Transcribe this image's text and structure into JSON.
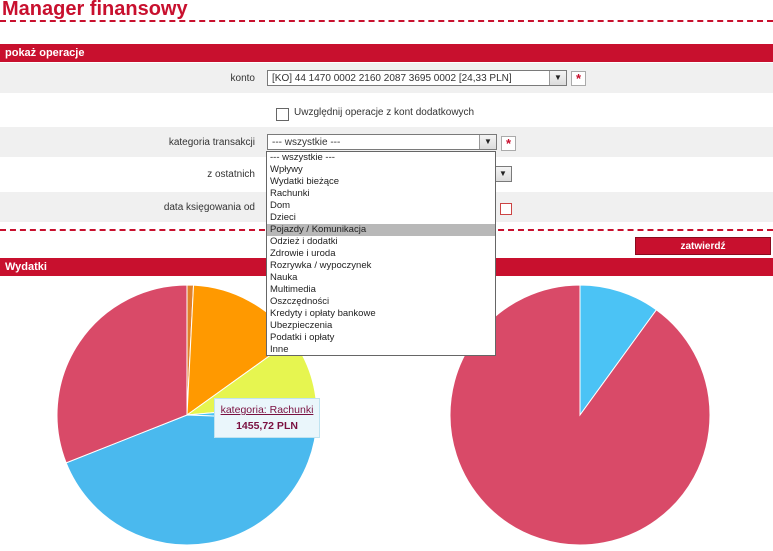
{
  "page": {
    "title": "Manager finansowy"
  },
  "filters": {
    "header": "pokaż operacje",
    "account_label": "konto",
    "account_value": "[KO] 44 1470 0002 2160 2087 3695 0002 [24,33 PLN]",
    "include_extra_label": "Uwzględnij operacje z kont dodatkowych",
    "category_label": "kategoria transakcji",
    "category_value": "--- wszystkie ---",
    "period_label": "z ostatnich",
    "date_label": "data księgowania od",
    "submit_label": "zatwierdź"
  },
  "category_options": [
    "--- wszystkie ---",
    "Wpływy",
    "Wydatki bieżące",
    "Rachunki",
    "Dom",
    "Dzieci",
    "Pojazdy / Komunikacja",
    "Odzież i dodatki",
    "Zdrowie i uroda",
    "Rozrywka / wypoczynek",
    "Nauka",
    "Multimedia",
    "Oszczędności",
    "Kredyty i opłaty bankowe",
    "Ubezpieczenia",
    "Podatki i opłaty",
    "Inne"
  ],
  "highlighted_option_index": 6,
  "expenses": {
    "header": "Wydatki"
  },
  "tooltip": {
    "category": "kategoria: Rachunki",
    "amount": "1455,72 PLN"
  },
  "chart_data": [
    {
      "type": "pie",
      "slices": [
        {
          "color": "#e0812a",
          "share": 0.008
        },
        {
          "color": "#ff9900",
          "share": 0.143
        },
        {
          "color": "#e6f550",
          "share": 0.085
        },
        {
          "color": "#4bc3f5",
          "share": 0.02
        },
        {
          "color": "#4ab9ee",
          "share": 0.434
        },
        {
          "color": "#d94a68",
          "share": 0.31
        }
      ]
    },
    {
      "type": "pie",
      "slices": [
        {
          "color": "#4bc3f5",
          "share": 0.1
        },
        {
          "color": "#d94a68",
          "share": 0.9
        }
      ]
    }
  ]
}
